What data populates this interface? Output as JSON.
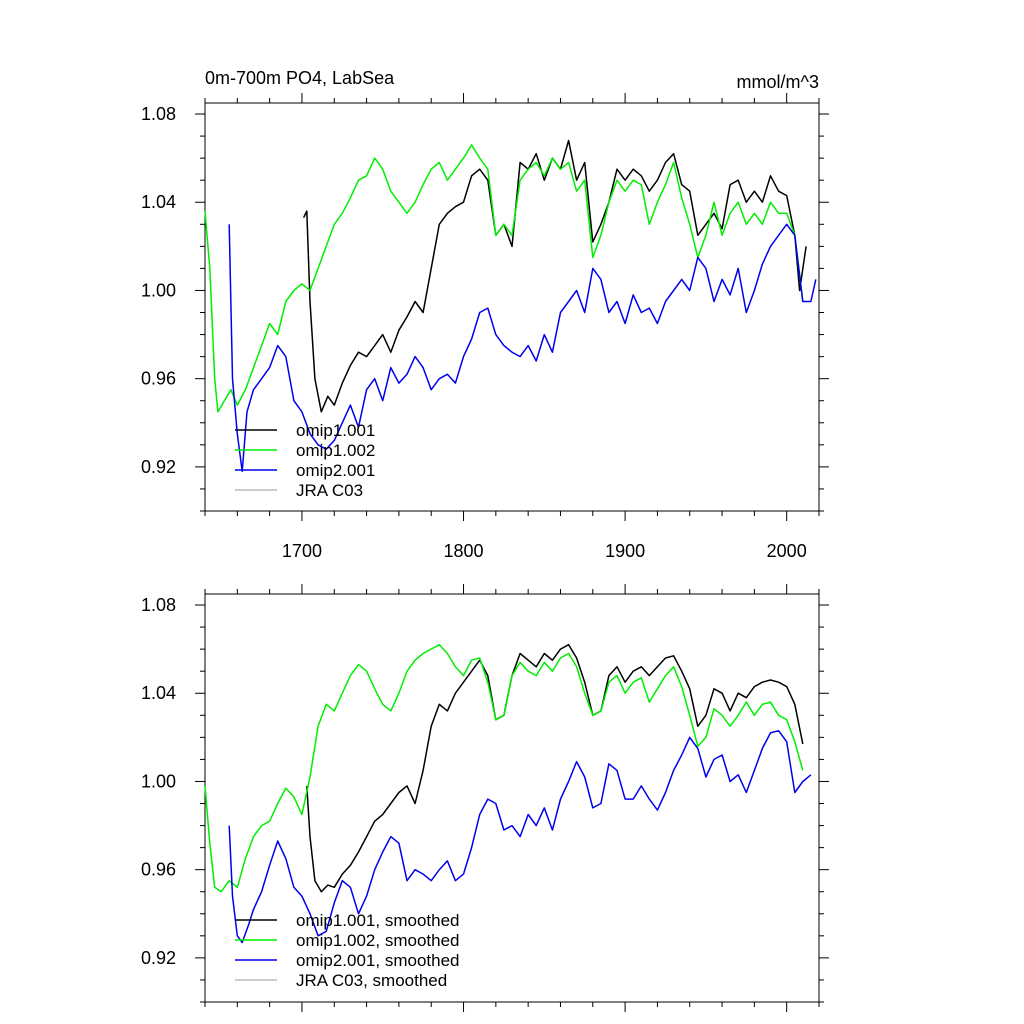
{
  "chart_data": [
    {
      "type": "line",
      "title": "0m-700m PO4, LabSea",
      "units": "mmol/m^3",
      "xlim": [
        1640,
        2020
      ],
      "ylim": [
        0.9,
        1.085
      ],
      "yticks": [
        "1.08",
        "1.04",
        "1.00",
        "0.96",
        "0.92"
      ],
      "xticks": [
        "1700",
        "1800",
        "1900",
        "2000"
      ],
      "legend_position": "bottom-left, inside plot",
      "series": [
        {
          "name": "omip1.001",
          "color": "#000000",
          "x": [
            1701,
            1703,
            1705,
            1708,
            1712,
            1716,
            1720,
            1725,
            1730,
            1735,
            1740,
            1745,
            1750,
            1755,
            1760,
            1765,
            1770,
            1775,
            1780,
            1785,
            1790,
            1795,
            1800,
            1805,
            1810,
            1815,
            1820,
            1825,
            1830,
            1835,
            1840,
            1845,
            1850,
            1855,
            1860,
            1865,
            1870,
            1875,
            1880,
            1885,
            1890,
            1895,
            1900,
            1905,
            1910,
            1915,
            1920,
            1925,
            1930,
            1935,
            1940,
            1945,
            1950,
            1955,
            1960,
            1965,
            1970,
            1975,
            1980,
            1985,
            1990,
            1995,
            2000,
            2005,
            2008,
            2012
          ],
          "y": [
            1.033,
            1.036,
            0.995,
            0.96,
            0.945,
            0.952,
            0.948,
            0.958,
            0.966,
            0.972,
            0.97,
            0.975,
            0.98,
            0.972,
            0.982,
            0.988,
            0.995,
            0.99,
            1.01,
            1.03,
            1.035,
            1.038,
            1.04,
            1.052,
            1.055,
            1.05,
            1.025,
            1.03,
            1.02,
            1.058,
            1.055,
            1.062,
            1.05,
            1.06,
            1.055,
            1.068,
            1.05,
            1.058,
            1.022,
            1.03,
            1.04,
            1.055,
            1.05,
            1.055,
            1.052,
            1.045,
            1.05,
            1.058,
            1.062,
            1.048,
            1.045,
            1.025,
            1.03,
            1.035,
            1.028,
            1.048,
            1.05,
            1.04,
            1.045,
            1.04,
            1.052,
            1.045,
            1.043,
            1.025,
            1.0,
            1.02
          ]
        },
        {
          "name": "omip1.002",
          "color": "#00ee00",
          "x": [
            1640,
            1643,
            1646,
            1648,
            1652,
            1656,
            1660,
            1665,
            1670,
            1675,
            1680,
            1685,
            1690,
            1695,
            1700,
            1705,
            1710,
            1715,
            1720,
            1725,
            1730,
            1735,
            1740,
            1745,
            1750,
            1755,
            1760,
            1765,
            1770,
            1775,
            1780,
            1785,
            1790,
            1795,
            1800,
            1805,
            1810,
            1815,
            1820,
            1825,
            1830,
            1835,
            1840,
            1845,
            1850,
            1855,
            1860,
            1865,
            1870,
            1875,
            1880,
            1885,
            1890,
            1895,
            1900,
            1905,
            1910,
            1915,
            1920,
            1925,
            1930,
            1935,
            1940,
            1945,
            1950,
            1955,
            1960,
            1965,
            1970,
            1975,
            1980,
            1985,
            1990,
            1995,
            2000,
            2005,
            2010
          ],
          "y": [
            1.036,
            1.01,
            0.96,
            0.945,
            0.95,
            0.955,
            0.948,
            0.955,
            0.965,
            0.975,
            0.985,
            0.98,
            0.995,
            1.0,
            1.003,
            1.0,
            1.01,
            1.02,
            1.03,
            1.035,
            1.042,
            1.05,
            1.052,
            1.06,
            1.055,
            1.045,
            1.04,
            1.035,
            1.04,
            1.048,
            1.055,
            1.058,
            1.05,
            1.055,
            1.06,
            1.066,
            1.06,
            1.055,
            1.025,
            1.03,
            1.025,
            1.05,
            1.055,
            1.058,
            1.052,
            1.06,
            1.055,
            1.058,
            1.045,
            1.05,
            1.015,
            1.025,
            1.04,
            1.05,
            1.045,
            1.05,
            1.048,
            1.03,
            1.04,
            1.048,
            1.058,
            1.042,
            1.03,
            1.015,
            1.025,
            1.04,
            1.025,
            1.035,
            1.04,
            1.03,
            1.035,
            1.03,
            1.04,
            1.035,
            1.035,
            1.025,
            0.995
          ]
        },
        {
          "name": "omip2.001",
          "color": "#0000ee",
          "x": [
            1655,
            1657,
            1660,
            1663,
            1666,
            1670,
            1675,
            1680,
            1685,
            1690,
            1695,
            1700,
            1705,
            1710,
            1715,
            1720,
            1725,
            1730,
            1735,
            1740,
            1745,
            1750,
            1755,
            1760,
            1765,
            1770,
            1775,
            1780,
            1785,
            1790,
            1795,
            1800,
            1805,
            1810,
            1815,
            1820,
            1825,
            1830,
            1835,
            1840,
            1845,
            1850,
            1855,
            1860,
            1865,
            1870,
            1875,
            1880,
            1885,
            1890,
            1895,
            1900,
            1905,
            1910,
            1915,
            1920,
            1925,
            1930,
            1935,
            1940,
            1945,
            1950,
            1955,
            1960,
            1965,
            1970,
            1975,
            1980,
            1985,
            1990,
            1995,
            2000,
            2005,
            2010,
            2015,
            2018
          ],
          "y": [
            1.03,
            0.96,
            0.935,
            0.918,
            0.945,
            0.955,
            0.96,
            0.965,
            0.975,
            0.97,
            0.95,
            0.945,
            0.935,
            0.93,
            0.928,
            0.932,
            0.94,
            0.948,
            0.938,
            0.955,
            0.96,
            0.95,
            0.965,
            0.958,
            0.962,
            0.97,
            0.965,
            0.955,
            0.96,
            0.962,
            0.958,
            0.97,
            0.978,
            0.99,
            0.992,
            0.98,
            0.975,
            0.972,
            0.97,
            0.975,
            0.968,
            0.98,
            0.972,
            0.99,
            0.995,
            1.0,
            0.99,
            1.01,
            1.005,
            0.99,
            0.995,
            0.985,
            0.998,
            0.99,
            0.992,
            0.985,
            0.995,
            1.0,
            1.005,
            1.0,
            1.015,
            1.01,
            0.995,
            1.005,
            0.998,
            1.01,
            0.99,
            1.0,
            1.012,
            1.02,
            1.025,
            1.03,
            1.025,
            0.995,
            0.995,
            1.005
          ]
        },
        {
          "name": "JRA C03",
          "color": "#bbbbbb",
          "x": [],
          "y": []
        }
      ]
    },
    {
      "type": "line",
      "xlim": [
        1640,
        2020
      ],
      "ylim": [
        0.9,
        1.085
      ],
      "yticks": [
        "1.08",
        "1.04",
        "1.00",
        "0.96",
        "0.92"
      ],
      "legend_position": "bottom-left, inside plot",
      "series": [
        {
          "name": "omip1.001, smoothed",
          "color": "#000000",
          "x": [
            1703,
            1705,
            1708,
            1712,
            1716,
            1720,
            1725,
            1730,
            1735,
            1740,
            1745,
            1750,
            1755,
            1760,
            1765,
            1770,
            1775,
            1780,
            1785,
            1790,
            1795,
            1800,
            1805,
            1810,
            1815,
            1820,
            1825,
            1830,
            1835,
            1840,
            1845,
            1850,
            1855,
            1860,
            1865,
            1870,
            1875,
            1880,
            1885,
            1890,
            1895,
            1900,
            1905,
            1910,
            1915,
            1920,
            1925,
            1930,
            1935,
            1940,
            1945,
            1950,
            1955,
            1960,
            1965,
            1970,
            1975,
            1980,
            1985,
            1990,
            1995,
            2000,
            2005,
            2010
          ],
          "y": [
            0.998,
            0.975,
            0.955,
            0.95,
            0.953,
            0.952,
            0.958,
            0.962,
            0.968,
            0.975,
            0.982,
            0.985,
            0.99,
            0.995,
            0.998,
            0.99,
            1.005,
            1.025,
            1.035,
            1.032,
            1.04,
            1.045,
            1.05,
            1.055,
            1.048,
            1.028,
            1.03,
            1.048,
            1.058,
            1.055,
            1.052,
            1.058,
            1.055,
            1.06,
            1.062,
            1.056,
            1.045,
            1.03,
            1.032,
            1.048,
            1.052,
            1.045,
            1.05,
            1.052,
            1.048,
            1.052,
            1.056,
            1.057,
            1.05,
            1.042,
            1.025,
            1.03,
            1.042,
            1.04,
            1.032,
            1.04,
            1.038,
            1.043,
            1.045,
            1.046,
            1.045,
            1.043,
            1.035,
            1.017
          ]
        },
        {
          "name": "omip1.002, smoothed",
          "color": "#00ee00",
          "x": [
            1640,
            1643,
            1646,
            1650,
            1655,
            1660,
            1665,
            1670,
            1675,
            1680,
            1685,
            1690,
            1695,
            1700,
            1705,
            1710,
            1715,
            1720,
            1725,
            1730,
            1735,
            1740,
            1745,
            1750,
            1755,
            1760,
            1765,
            1770,
            1775,
            1780,
            1785,
            1790,
            1795,
            1800,
            1805,
            1810,
            1815,
            1820,
            1825,
            1830,
            1835,
            1840,
            1845,
            1850,
            1855,
            1860,
            1865,
            1870,
            1875,
            1880,
            1885,
            1890,
            1895,
            1900,
            1905,
            1910,
            1915,
            1920,
            1925,
            1930,
            1935,
            1940,
            1945,
            1950,
            1955,
            1960,
            1965,
            1970,
            1975,
            1980,
            1985,
            1990,
            1995,
            2000,
            2005,
            2010
          ],
          "y": [
            0.998,
            0.972,
            0.952,
            0.95,
            0.955,
            0.952,
            0.965,
            0.975,
            0.98,
            0.982,
            0.99,
            0.997,
            0.993,
            0.985,
            1.002,
            1.025,
            1.035,
            1.032,
            1.04,
            1.048,
            1.053,
            1.05,
            1.042,
            1.035,
            1.032,
            1.04,
            1.05,
            1.055,
            1.058,
            1.06,
            1.062,
            1.058,
            1.052,
            1.048,
            1.055,
            1.056,
            1.045,
            1.028,
            1.03,
            1.048,
            1.054,
            1.05,
            1.048,
            1.054,
            1.05,
            1.056,
            1.058,
            1.052,
            1.04,
            1.03,
            1.032,
            1.045,
            1.048,
            1.04,
            1.045,
            1.047,
            1.036,
            1.042,
            1.048,
            1.052,
            1.043,
            1.03,
            1.016,
            1.02,
            1.033,
            1.03,
            1.025,
            1.03,
            1.036,
            1.03,
            1.035,
            1.036,
            1.03,
            1.028,
            1.018,
            1.005
          ]
        },
        {
          "name": "omip2.001, smoothed",
          "color": "#0000ee",
          "x": [
            1655,
            1657,
            1660,
            1663,
            1667,
            1670,
            1675,
            1680,
            1685,
            1690,
            1695,
            1700,
            1705,
            1710,
            1715,
            1720,
            1725,
            1730,
            1735,
            1740,
            1745,
            1750,
            1755,
            1760,
            1765,
            1770,
            1775,
            1780,
            1785,
            1790,
            1795,
            1800,
            1805,
            1810,
            1815,
            1820,
            1825,
            1830,
            1835,
            1840,
            1845,
            1850,
            1855,
            1860,
            1865,
            1870,
            1875,
            1880,
            1885,
            1890,
            1895,
            1900,
            1905,
            1910,
            1915,
            1920,
            1925,
            1930,
            1935,
            1940,
            1945,
            1950,
            1955,
            1960,
            1965,
            1970,
            1975,
            1980,
            1985,
            1990,
            1995,
            2000,
            2005,
            2010,
            2015
          ],
          "y": [
            0.98,
            0.948,
            0.93,
            0.927,
            0.935,
            0.942,
            0.95,
            0.962,
            0.973,
            0.965,
            0.952,
            0.948,
            0.94,
            0.93,
            0.932,
            0.945,
            0.955,
            0.952,
            0.94,
            0.948,
            0.96,
            0.968,
            0.975,
            0.972,
            0.955,
            0.96,
            0.958,
            0.955,
            0.96,
            0.964,
            0.955,
            0.958,
            0.97,
            0.985,
            0.992,
            0.99,
            0.978,
            0.98,
            0.975,
            0.985,
            0.98,
            0.988,
            0.978,
            0.992,
            1.0,
            1.009,
            1.002,
            0.988,
            0.99,
            1.008,
            1.005,
            0.992,
            0.992,
            0.998,
            0.992,
            0.987,
            0.995,
            1.005,
            1.012,
            1.02,
            1.015,
            1.002,
            1.01,
            1.012,
            1.0,
            1.003,
            0.995,
            1.005,
            1.015,
            1.022,
            1.023,
            1.018,
            0.995,
            1.0,
            1.003
          ]
        },
        {
          "name": "JRA C03, smoothed",
          "color": "#bbbbbb",
          "x": [],
          "y": []
        }
      ]
    }
  ]
}
